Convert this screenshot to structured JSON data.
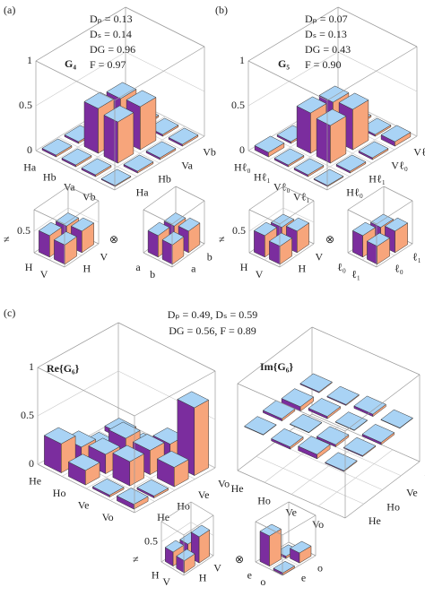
{
  "panel_labels": [
    "(a)",
    "(b)",
    "(c)"
  ],
  "panel_c_annotations": [
    "Dₚ = 0.49, Dₛ = 0.59",
    "DG = 0.56, F = 0.89"
  ],
  "chart_data": [
    {
      "type": "bar3d",
      "title": "G₄",
      "annotations": [
        "Dₚ = 0.13",
        "Dₛ = 0.14",
        "DG = 0.96",
        "F = 0.97"
      ],
      "row_labels": [
        "Ha",
        "Hb",
        "Va",
        "Vb"
      ],
      "col_labels": [
        "Ha",
        "Hb",
        "Va",
        "Vb"
      ],
      "values": [
        [
          0.02,
          0.02,
          0.02,
          0.01
        ],
        [
          0.02,
          0.5,
          0.46,
          0.02
        ],
        [
          0.02,
          0.46,
          0.48,
          0.02
        ],
        [
          0.01,
          0.02,
          0.02,
          0.02
        ]
      ],
      "zlim": [
        0,
        1
      ],
      "zticks": [
        0,
        0.5,
        1
      ],
      "colors": {
        "top": "#a9d3f5",
        "left": "#7b2d9e",
        "right": "#f7a57b"
      }
    },
    {
      "type": "bar3d",
      "title": "G₅",
      "annotations": [
        "Dₚ = 0.07",
        "Dₛ = 0.13",
        "DG = 0.43",
        "F = 0.90"
      ],
      "row_labels": [
        "Hℓ₀",
        "Hℓ₁",
        "Vℓ₀",
        "Vℓ₁"
      ],
      "col_labels": [
        "Hℓ₀",
        "Hℓ₁",
        "Vℓ₀",
        "Vℓ₁"
      ],
      "values": [
        [
          0.05,
          0.02,
          0.02,
          0.01
        ],
        [
          0.02,
          0.45,
          0.42,
          0.02
        ],
        [
          0.02,
          0.42,
          0.45,
          0.02
        ],
        [
          0.01,
          0.02,
          0.02,
          0.05
        ]
      ],
      "zlim": [
        0,
        1
      ],
      "zticks": [
        0,
        0.5,
        1
      ],
      "colors": {
        "top": "#a9d3f5",
        "left": "#7b2d9e",
        "right": "#f7a57b"
      }
    },
    {
      "type": "bar3d",
      "annotations": [
        "≠"
      ],
      "row_labels": [
        "H",
        "V"
      ],
      "col_labels": [
        "H",
        "V"
      ],
      "values": [
        [
          0.5,
          0.45
        ],
        [
          0.45,
          0.5
        ]
      ],
      "zlim": [
        0,
        1
      ],
      "zticks": [
        0.5
      ],
      "colors": {
        "top": "#a9d3f5",
        "left": "#7b2d9e",
        "right": "#f7a57b"
      }
    },
    {
      "type": "bar3d",
      "annotations": [
        "⊗"
      ],
      "row_labels": [
        "a",
        "b"
      ],
      "col_labels": [
        "a",
        "b"
      ],
      "values": [
        [
          0.5,
          0.45
        ],
        [
          0.45,
          0.5
        ]
      ],
      "zlim": [
        0,
        1
      ],
      "colors": {
        "top": "#a9d3f5",
        "left": "#7b2d9e",
        "right": "#f7a57b"
      }
    },
    {
      "type": "bar3d",
      "annotations": [
        "≠"
      ],
      "row_labels": [
        "H",
        "V"
      ],
      "col_labels": [
        "H",
        "V"
      ],
      "values": [
        [
          0.5,
          0.42
        ],
        [
          0.42,
          0.5
        ]
      ],
      "zlim": [
        0,
        1
      ],
      "zticks": [
        0.5
      ],
      "colors": {
        "top": "#a9d3f5",
        "left": "#7b2d9e",
        "right": "#f7a57b"
      }
    },
    {
      "type": "bar3d",
      "annotations": [
        "⊗"
      ],
      "row_labels": [
        "ℓ₀",
        "ℓ₁"
      ],
      "col_labels": [
        "ℓ₀",
        "ℓ₁"
      ],
      "values": [
        [
          0.5,
          0.42
        ],
        [
          0.42,
          0.5
        ]
      ],
      "zlim": [
        0,
        1
      ],
      "colors": {
        "top": "#a9d3f5",
        "left": "#7b2d9e",
        "right": "#f7a57b"
      }
    },
    {
      "type": "bar3d",
      "title": "Re{G₆}",
      "row_labels": [
        "He",
        "Ho",
        "Ve",
        "Vo"
      ],
      "col_labels": [
        "He",
        "Ho",
        "Ve",
        "Vo"
      ],
      "values": [
        [
          0.3,
          0.15,
          0.02,
          0.05
        ],
        [
          0.15,
          0.2,
          0.25,
          0.02
        ],
        [
          0.02,
          0.25,
          0.25,
          0.2
        ],
        [
          0.05,
          0.02,
          0.2,
          0.7
        ]
      ],
      "zlim": [
        0,
        1
      ],
      "zticks": [
        0,
        0.5,
        1
      ],
      "colors": {
        "top": "#a9d3f5",
        "left": "#7b2d9e",
        "right": "#f7a57b"
      }
    },
    {
      "type": "bar3d",
      "title": "Im{G₆}",
      "row_labels": [
        "He",
        "Ho",
        "Ve",
        "Vo"
      ],
      "col_labels": [
        "He",
        "Ho",
        "Ve",
        "Vo"
      ],
      "values": [
        [
          0.01,
          0.05,
          -0.1,
          0.02
        ],
        [
          -0.05,
          0.01,
          0.05,
          -0.02
        ],
        [
          0.1,
          -0.05,
          0.01,
          0.05
        ],
        [
          -0.02,
          0.02,
          -0.05,
          0.01
        ]
      ],
      "zlim": [
        -1,
        1
      ],
      "colors": {
        "top": "#a9d3f5",
        "left": "#7b2d9e",
        "right": "#f7a57b"
      }
    },
    {
      "type": "bar3d",
      "annotations": [
        "≠"
      ],
      "row_labels": [
        "H",
        "V"
      ],
      "col_labels": [
        "H",
        "V"
      ],
      "values": [
        [
          0.35,
          0.3
        ],
        [
          0.3,
          0.65
        ]
      ],
      "zlim": [
        0,
        1
      ],
      "zticks": [
        0.5
      ],
      "colors": {
        "top": "#a9d3f5",
        "left": "#7b2d9e",
        "right": "#f7a57b"
      }
    },
    {
      "type": "bar3d",
      "annotations": [
        "⊗"
      ],
      "row_labels": [
        "e",
        "o"
      ],
      "col_labels": [
        "e",
        "o"
      ],
      "values": [
        [
          0.75,
          -0.05
        ],
        [
          -0.05,
          0.25
        ]
      ],
      "zlim": [
        0,
        1
      ],
      "colors": {
        "top": "#a9d3f5",
        "left": "#7b2d9e",
        "right": "#f7a57b"
      }
    }
  ]
}
